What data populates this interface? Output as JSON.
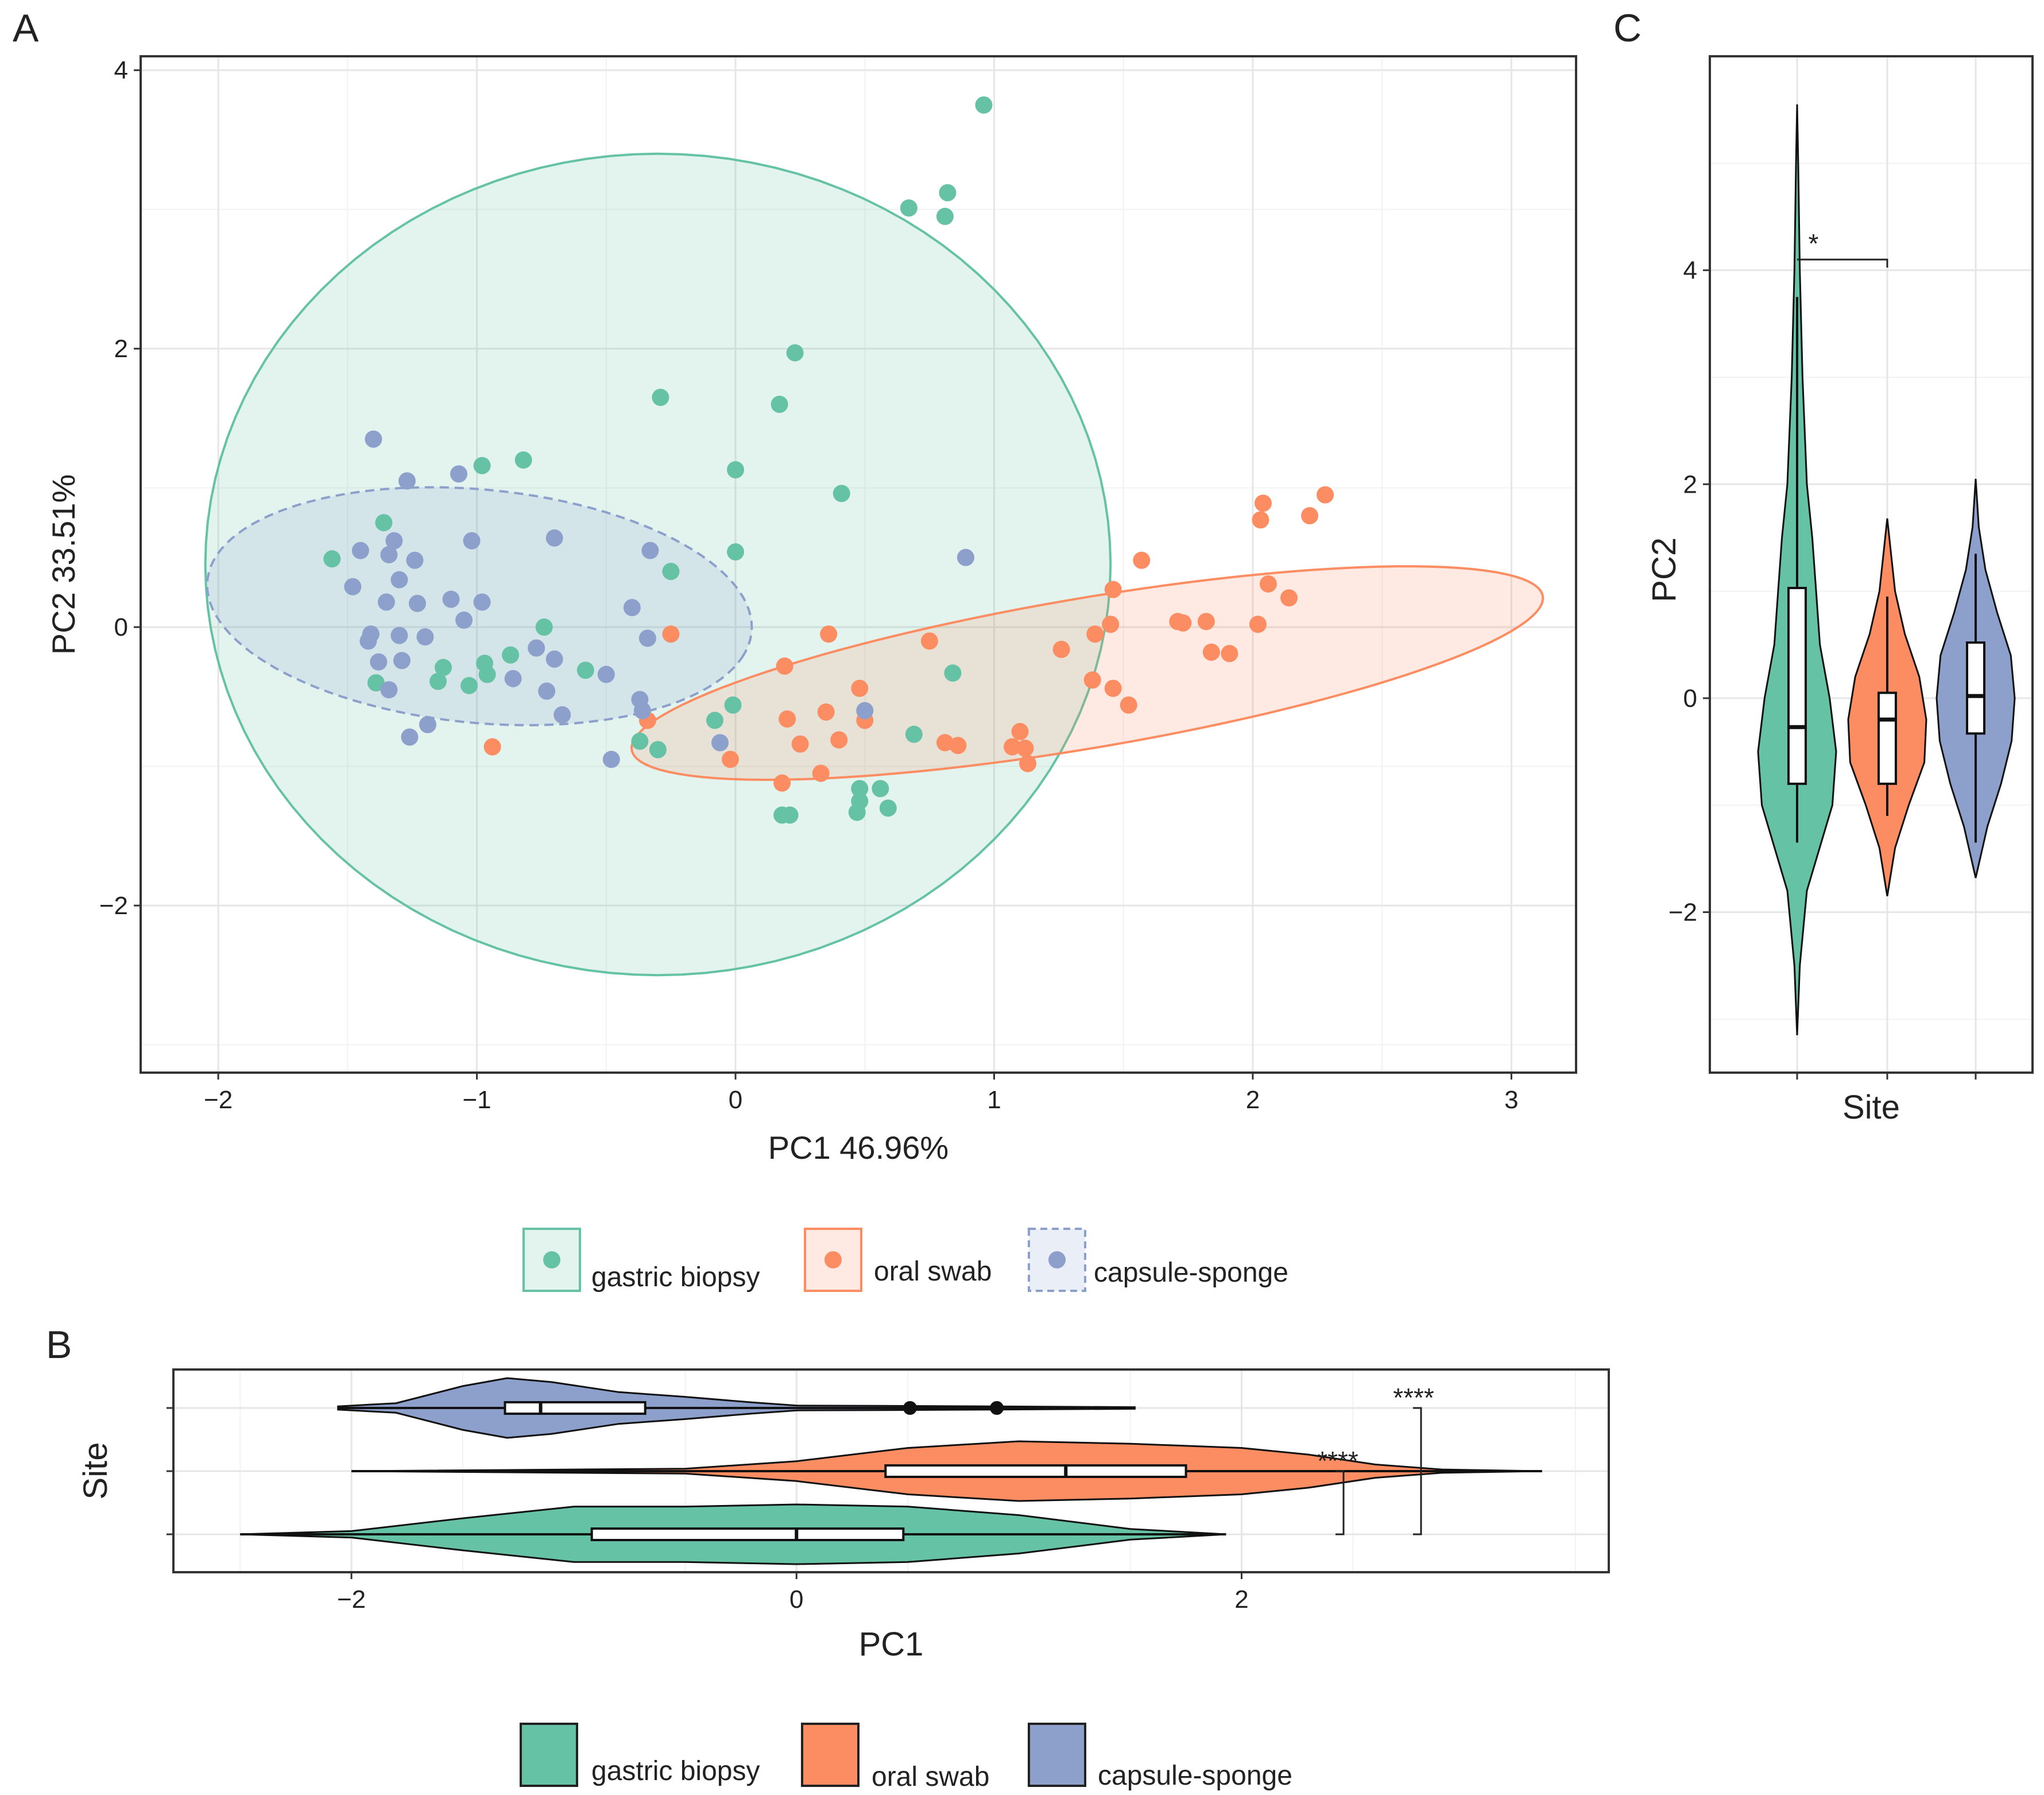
{
  "panels": {
    "A": {
      "label": "A"
    },
    "B": {
      "label": "B"
    },
    "C": {
      "label": "C"
    }
  },
  "colors": {
    "gastric biopsy": "#66c2a5",
    "oral swab": "#fc8d62",
    "capsule-sponge": "#8da0cb"
  },
  "legend_A": [
    "gastric biopsy",
    "oral swab",
    "capsule-sponge"
  ],
  "legend_B": [
    "gastric biopsy",
    "oral swab",
    "capsule-sponge"
  ],
  "chart_data": [
    {
      "id": "A",
      "type": "scatter",
      "title": "",
      "xlabel": "PC1 46.96%",
      "ylabel": "PC2 33.51%",
      "xlim": [
        -2.3,
        3.25
      ],
      "ylim": [
        -3.2,
        4.1
      ],
      "xticks": [
        -2,
        -1,
        0,
        1,
        2,
        3
      ],
      "yticks": [
        -2,
        0,
        2,
        4
      ],
      "series": [
        {
          "name": "gastric biopsy",
          "points": [
            [
              0.96,
              3.75
            ],
            [
              0.82,
              3.12
            ],
            [
              0.67,
              3.01
            ],
            [
              0.81,
              2.95
            ],
            [
              0.23,
              1.97
            ],
            [
              -0.29,
              1.65
            ],
            [
              0.17,
              1.6
            ],
            [
              0,
              1.13
            ],
            [
              0.41,
              0.96
            ],
            [
              -0.82,
              1.2
            ],
            [
              -0.98,
              1.16
            ],
            [
              -1.36,
              0.75
            ],
            [
              0,
              0.54
            ],
            [
              -1.56,
              0.49
            ],
            [
              -0.25,
              0.4
            ],
            [
              -0.74,
              0.0
            ],
            [
              -1.13,
              -0.29
            ],
            [
              -0.97,
              -0.26
            ],
            [
              -0.87,
              -0.2
            ],
            [
              -0.96,
              -0.34
            ],
            [
              -1.15,
              -0.39
            ],
            [
              -1.03,
              -0.42
            ],
            [
              -0.58,
              -0.31
            ],
            [
              -1.39,
              -0.4
            ],
            [
              0.84,
              -0.33
            ],
            [
              -0.01,
              -0.56
            ],
            [
              -0.08,
              -0.67
            ],
            [
              0.69,
              -0.77
            ],
            [
              -0.37,
              -0.82
            ],
            [
              -0.3,
              -0.88
            ],
            [
              0.48,
              -1.16
            ],
            [
              0.56,
              -1.16
            ],
            [
              0.48,
              -1.25
            ],
            [
              0.59,
              -1.3
            ],
            [
              0.18,
              -1.35
            ],
            [
              0.21,
              -1.35
            ],
            [
              0.47,
              -1.33
            ]
          ]
        },
        {
          "name": "oral swab",
          "points": [
            [
              2.28,
              0.95
            ],
            [
              2.04,
              0.89
            ],
            [
              2.22,
              0.8
            ],
            [
              2.03,
              0.77
            ],
            [
              1.57,
              0.48
            ],
            [
              2.06,
              0.31
            ],
            [
              2.14,
              0.21
            ],
            [
              1.46,
              0.27
            ],
            [
              1.71,
              0.04
            ],
            [
              1.73,
              0.03
            ],
            [
              1.82,
              0.04
            ],
            [
              1.45,
              0.02
            ],
            [
              1.39,
              -0.05
            ],
            [
              2.02,
              0.02
            ],
            [
              -0.25,
              -0.05
            ],
            [
              0.36,
              -0.05
            ],
            [
              0.75,
              -0.1
            ],
            [
              1.26,
              -0.16
            ],
            [
              1.84,
              -0.18
            ],
            [
              1.91,
              -0.19
            ],
            [
              0.19,
              -0.28
            ],
            [
              1.38,
              -0.38
            ],
            [
              1.46,
              -0.44
            ],
            [
              1.52,
              -0.56
            ],
            [
              0.48,
              -0.44
            ],
            [
              0.35,
              -0.61
            ],
            [
              0.2,
              -0.66
            ],
            [
              -0.34,
              -0.67
            ],
            [
              0.5,
              -0.67
            ],
            [
              1.1,
              -0.75
            ],
            [
              0.25,
              -0.84
            ],
            [
              0.4,
              -0.81
            ],
            [
              0.81,
              -0.83
            ],
            [
              0.86,
              -0.85
            ],
            [
              1.07,
              -0.86
            ],
            [
              1.12,
              -0.87
            ],
            [
              -0.94,
              -0.86
            ],
            [
              -0.02,
              -0.95
            ],
            [
              1.13,
              -0.98
            ],
            [
              0.33,
              -1.05
            ],
            [
              0.18,
              -1.12
            ]
          ]
        },
        {
          "name": "capsule-sponge",
          "points": [
            [
              -1.4,
              1.35
            ],
            [
              -1.07,
              1.1
            ],
            [
              -1.27,
              1.05
            ],
            [
              -1.02,
              0.62
            ],
            [
              -0.7,
              0.64
            ],
            [
              -1.32,
              0.62
            ],
            [
              -1.45,
              0.55
            ],
            [
              -1.34,
              0.52
            ],
            [
              -1.24,
              0.48
            ],
            [
              -0.33,
              0.55
            ],
            [
              0.89,
              0.5
            ],
            [
              -1.3,
              0.34
            ],
            [
              -1.48,
              0.29
            ],
            [
              -1.35,
              0.18
            ],
            [
              -1.23,
              0.17
            ],
            [
              -1.1,
              0.2
            ],
            [
              -0.98,
              0.18
            ],
            [
              -1.05,
              0.05
            ],
            [
              -0.4,
              0.14
            ],
            [
              -1.41,
              -0.05
            ],
            [
              -1.3,
              -0.06
            ],
            [
              -1.2,
              -0.07
            ],
            [
              -1.42,
              -0.1
            ],
            [
              -0.34,
              -0.08
            ],
            [
              -0.77,
              -0.15
            ],
            [
              -0.7,
              -0.23
            ],
            [
              -1.38,
              -0.25
            ],
            [
              -1.29,
              -0.24
            ],
            [
              -0.86,
              -0.37
            ],
            [
              -0.73,
              -0.46
            ],
            [
              -0.5,
              -0.34
            ],
            [
              -1.34,
              -0.45
            ],
            [
              -0.37,
              -0.52
            ],
            [
              -0.67,
              -0.63
            ],
            [
              -1.19,
              -0.7
            ],
            [
              -1.26,
              -0.79
            ],
            [
              -0.48,
              -0.95
            ],
            [
              -0.06,
              -0.83
            ],
            [
              -0.36,
              -0.6
            ],
            [
              0.5,
              -0.6
            ]
          ]
        }
      ],
      "ellipses": [
        {
          "group": "gastric biopsy",
          "cx": -0.3,
          "cy": 0.45,
          "rx": 1.75,
          "ry": 2.95,
          "angle_deg": 0,
          "dashed": false
        },
        {
          "group": "oral swab",
          "cx": 1.36,
          "cy": -0.33,
          "rx": 1.85,
          "ry": 0.52,
          "angle_deg": 18.5,
          "dashed": false
        },
        {
          "group": "capsule-sponge",
          "cx": -0.99,
          "cy": 0.15,
          "rx": 1.08,
          "ry": 0.82,
          "angle_deg": -20,
          "dashed": true
        }
      ]
    },
    {
      "id": "B",
      "type": "violin",
      "orientation": "horizontal",
      "xlabel": "PC1",
      "ylabel": "Site",
      "xlim": [
        -2.8,
        3.65
      ],
      "xticks": [
        -2,
        0,
        2
      ],
      "groups": [
        {
          "name": "capsule-sponge",
          "min": -2.06,
          "max": 1.52,
          "q1": -1.31,
          "median": -1.15,
          "q3": -0.68,
          "whisker_low": -1.46,
          "whisker_high": 0.0,
          "outliers": [
            0.51,
            0.9
          ],
          "density": [
            [
              -2.06,
              0.04
            ],
            [
              -1.8,
              0.12
            ],
            [
              -1.5,
              0.55
            ],
            [
              -1.3,
              0.75
            ],
            [
              -1.1,
              0.65
            ],
            [
              -0.8,
              0.4
            ],
            [
              -0.5,
              0.28
            ],
            [
              -0.2,
              0.14
            ],
            [
              0.0,
              0.06
            ],
            [
              0.5,
              0.05
            ],
            [
              0.9,
              0.04
            ],
            [
              1.52,
              0.02
            ]
          ]
        },
        {
          "name": "oral swab",
          "min": -2.0,
          "max": 3.35,
          "q1": 0.4,
          "median": 1.21,
          "q3": 1.75,
          "whisker_low": -0.3,
          "whisker_high": 2.28,
          "outliers": [],
          "density": [
            [
              -2.0,
              0.0
            ],
            [
              -0.5,
              0.03
            ],
            [
              0.0,
              0.12
            ],
            [
              0.5,
              0.28
            ],
            [
              1.0,
              0.36
            ],
            [
              1.5,
              0.33
            ],
            [
              2.0,
              0.28
            ],
            [
              2.3,
              0.2
            ],
            [
              2.6,
              0.08
            ],
            [
              2.9,
              0.02
            ],
            [
              3.35,
              0.0
            ]
          ]
        },
        {
          "name": "gastric biopsy",
          "min": -2.5,
          "max": 1.93,
          "q1": -0.92,
          "median": 0.0,
          "q3": 0.48,
          "whisker_low": -1.56,
          "whisker_high": 0.96,
          "outliers": [],
          "density": [
            [
              -2.5,
              0.0
            ],
            [
              -2.0,
              0.03
            ],
            [
              -1.5,
              0.15
            ],
            [
              -1.0,
              0.26
            ],
            [
              -0.5,
              0.26
            ],
            [
              0.0,
              0.28
            ],
            [
              0.5,
              0.26
            ],
            [
              1.0,
              0.18
            ],
            [
              1.5,
              0.05
            ],
            [
              1.93,
              0.0
            ]
          ]
        }
      ],
      "significance": [
        {
          "from": "oral swab",
          "to": "gastric biopsy",
          "label": "****"
        },
        {
          "from": "capsule-sponge",
          "to": "gastric biopsy",
          "label": "****"
        }
      ]
    },
    {
      "id": "C",
      "type": "violin",
      "orientation": "vertical",
      "xlabel": "Site",
      "ylabel": "PC2",
      "ylim": [
        -3.5,
        6.0
      ],
      "yticks": [
        -2,
        0,
        2,
        4
      ],
      "groups": [
        {
          "name": "gastric biopsy",
          "min": -3.15,
          "max": 5.55,
          "q1": -0.8,
          "median": -0.27,
          "q3": 1.03,
          "whisker_low": -1.35,
          "whisker_high": 3.75,
          "outliers": [],
          "density": [
            [
              -3.15,
              0.0
            ],
            [
              -2.5,
              0.05
            ],
            [
              -1.8,
              0.18
            ],
            [
              -1.0,
              0.65
            ],
            [
              -0.5,
              0.72
            ],
            [
              0.0,
              0.6
            ],
            [
              0.5,
              0.42
            ],
            [
              1.0,
              0.35
            ],
            [
              1.5,
              0.28
            ],
            [
              2.0,
              0.18
            ],
            [
              3.0,
              0.1
            ],
            [
              4.0,
              0.05
            ],
            [
              5.0,
              0.02
            ],
            [
              5.55,
              0.0
            ]
          ]
        },
        {
          "name": "oral swab",
          "min": -1.85,
          "max": 1.68,
          "q1": -0.8,
          "median": -0.2,
          "q3": 0.05,
          "whisker_low": -1.1,
          "whisker_high": 0.95,
          "outliers": [],
          "density": [
            [
              -1.85,
              0.0
            ],
            [
              -1.4,
              0.2
            ],
            [
              -1.0,
              0.55
            ],
            [
              -0.6,
              0.95
            ],
            [
              -0.2,
              1.0
            ],
            [
              0.2,
              0.82
            ],
            [
              0.6,
              0.45
            ],
            [
              1.0,
              0.2
            ],
            [
              1.68,
              0.0
            ]
          ]
        },
        {
          "name": "capsule-sponge",
          "min": -1.68,
          "max": 2.05,
          "q1": -0.33,
          "median": 0.02,
          "q3": 0.52,
          "whisker_low": -1.35,
          "whisker_high": 1.35,
          "outliers": [],
          "density": [
            [
              -1.68,
              0.0
            ],
            [
              -1.2,
              0.3
            ],
            [
              -0.8,
              0.65
            ],
            [
              -0.4,
              0.92
            ],
            [
              0.0,
              1.0
            ],
            [
              0.4,
              0.9
            ],
            [
              0.8,
              0.55
            ],
            [
              1.2,
              0.25
            ],
            [
              1.6,
              0.08
            ],
            [
              2.05,
              0.0
            ]
          ]
        }
      ],
      "significance": [
        {
          "from": "gastric biopsy",
          "to": "oral swab",
          "label": "*",
          "y": 4.1
        }
      ]
    }
  ]
}
